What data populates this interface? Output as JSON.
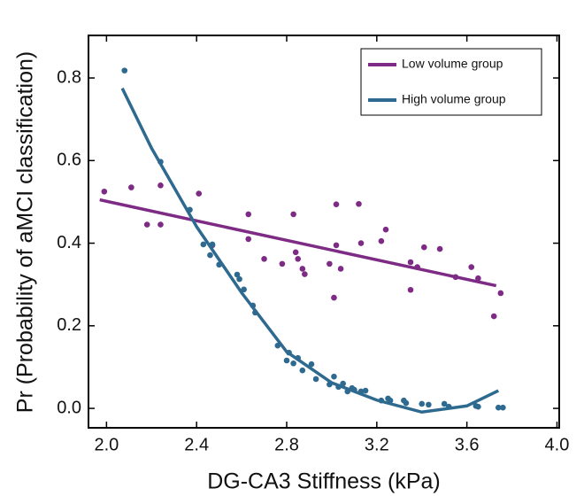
{
  "chart_data": {
    "type": "scatter",
    "x_label": "DG-CA3 Stiffness (kPa)",
    "y_label": "Pr (Probability of aMCI classification)",
    "xlim": [
      1.92,
      4.01
    ],
    "ylim": [
      -0.047,
      0.903
    ],
    "xticks": [
      {
        "value": 2.0,
        "label": "2.0"
      },
      2.4,
      2.8,
      3.2,
      3.6,
      {
        "value": 4.0,
        "label": "4.0"
      }
    ],
    "yticks": [
      {
        "value": 0.0,
        "label": "0.0"
      },
      0.2,
      0.4,
      0.6,
      0.8
    ],
    "legend": "upper right",
    "series": [
      {
        "name": "Low volume group",
        "color": "#7d2b85",
        "x": [
          1.99,
          2.11,
          2.18,
          2.24,
          2.24,
          2.41,
          2.47,
          2.63,
          2.63,
          2.7,
          2.78,
          2.83,
          2.84,
          2.85,
          2.87,
          2.88,
          2.99,
          3.01,
          3.02,
          3.02,
          3.04,
          3.12,
          3.13,
          3.22,
          3.24,
          3.35,
          3.35,
          3.38,
          3.41,
          3.48,
          3.55,
          3.62,
          3.65,
          3.72,
          3.75
        ],
        "values": [
          0.525,
          0.535,
          0.445,
          0.54,
          0.445,
          0.52,
          0.395,
          0.47,
          0.41,
          0.362,
          0.35,
          0.47,
          0.378,
          0.362,
          0.338,
          0.325,
          0.35,
          0.268,
          0.494,
          0.395,
          0.338,
          0.495,
          0.4,
          0.405,
          0.433,
          0.354,
          0.287,
          0.342,
          0.39,
          0.386,
          0.318,
          0.342,
          0.315,
          0.223,
          0.279
        ],
        "fit": {
          "x": [
            1.97,
            3.73
          ],
          "values": [
            0.505,
            0.297
          ]
        }
      },
      {
        "name": "High volume group",
        "color": "#2e6a8f",
        "x": [
          2.08,
          2.24,
          2.37,
          2.43,
          2.46,
          2.47,
          2.5,
          2.58,
          2.59,
          2.61,
          2.65,
          2.66,
          2.76,
          2.8,
          2.81,
          2.83,
          2.85,
          2.87,
          2.91,
          2.93,
          2.99,
          3.01,
          3.03,
          3.05,
          3.07,
          3.09,
          3.1,
          3.13,
          3.15,
          3.22,
          3.25,
          3.26,
          3.32,
          3.33,
          3.4,
          3.43,
          3.5,
          3.52,
          3.64,
          3.65,
          3.74,
          3.76
        ],
        "values": [
          0.818,
          0.597,
          0.481,
          0.397,
          0.371,
          0.397,
          0.348,
          0.324,
          0.313,
          0.288,
          0.249,
          0.232,
          0.152,
          0.116,
          0.135,
          0.109,
          0.122,
          0.092,
          0.107,
          0.071,
          0.058,
          0.077,
          0.052,
          0.06,
          0.041,
          0.049,
          0.045,
          0.041,
          0.043,
          0.019,
          0.024,
          0.019,
          0.019,
          0.013,
          0.011,
          0.009,
          0.011,
          0.004,
          0.006,
          0.004,
          0.002,
          0.002
        ],
        "fit": {
          "x": [
            2.07,
            2.2,
            2.4,
            2.6,
            2.8,
            3.0,
            3.2,
            3.4,
            3.6,
            3.74
          ],
          "values": [
            0.775,
            0.63,
            0.44,
            0.28,
            0.137,
            0.062,
            0.02,
            -0.009,
            0.006,
            0.043
          ]
        }
      }
    ]
  }
}
